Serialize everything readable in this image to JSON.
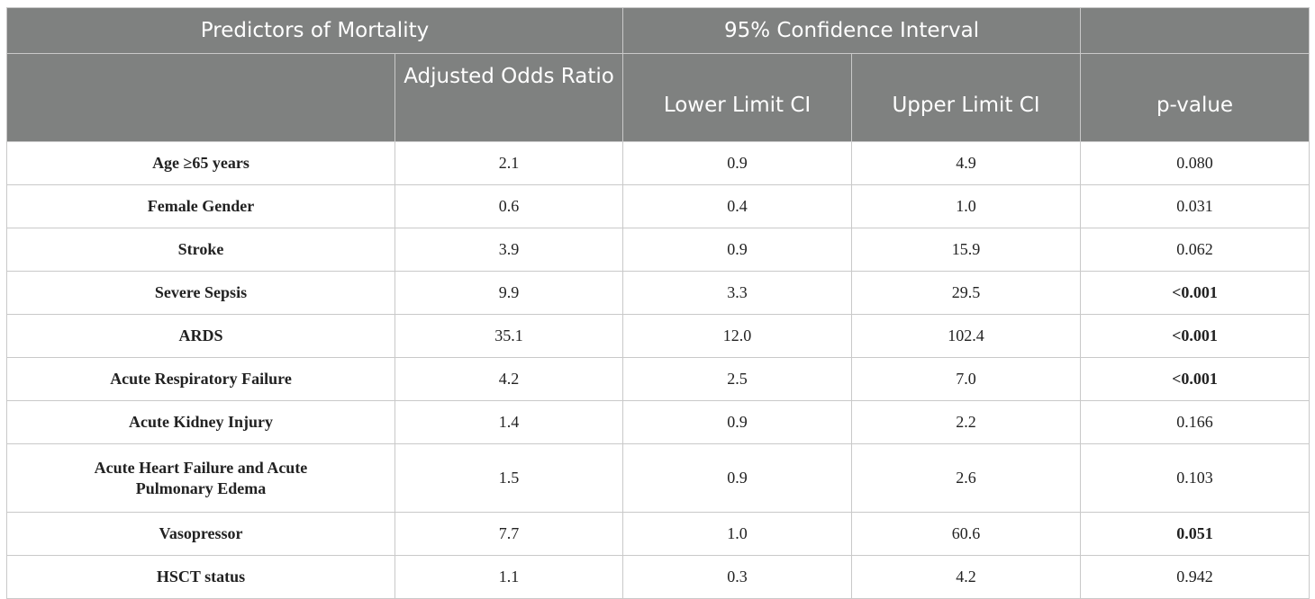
{
  "header": {
    "predictors": "Predictors of Mortality",
    "ci": "95% Confidence Interval",
    "aor": "Adjusted Odds Ratio",
    "lower": "Lower Limit CI",
    "upper": "Upper Limit CI",
    "p": "p-value"
  },
  "rows": [
    {
      "label": "Age ≥65 years",
      "aor": "2.1",
      "lower": "0.9",
      "upper": "4.9",
      "p": "0.080",
      "p_bold": false
    },
    {
      "label": "Female Gender",
      "aor": "0.6",
      "lower": "0.4",
      "upper": "1.0",
      "p": "0.031",
      "p_bold": false
    },
    {
      "label": "Stroke",
      "aor": "3.9",
      "lower": "0.9",
      "upper": "15.9",
      "p": "0.062",
      "p_bold": false
    },
    {
      "label": "Severe Sepsis",
      "aor": "9.9",
      "lower": "3.3",
      "upper": "29.5",
      "p": "<0.001",
      "p_bold": true
    },
    {
      "label": "ARDS",
      "aor": "35.1",
      "lower": "12.0",
      "upper": "102.4",
      "p": "<0.001",
      "p_bold": true
    },
    {
      "label": "Acute Respiratory Failure",
      "aor": "4.2",
      "lower": "2.5",
      "upper": "7.0",
      "p": "<0.001",
      "p_bold": true
    },
    {
      "label": "Acute Kidney Injury",
      "aor": "1.4",
      "lower": "0.9",
      "upper": "2.2",
      "p": "0.166",
      "p_bold": false
    },
    {
      "label": "Acute Heart Failure and Acute Pulmonary Edema",
      "aor": "1.5",
      "lower": "0.9",
      "upper": "2.6",
      "p": "0.103",
      "p_bold": false
    },
    {
      "label": "Vasopressor",
      "aor": "7.7",
      "lower": "1.0",
      "upper": "60.6",
      "p": "0.051",
      "p_bold": true
    },
    {
      "label": "HSCT status",
      "aor": "1.1",
      "lower": "0.3",
      "upper": "4.2",
      "p": "0.942",
      "p_bold": false
    }
  ]
}
